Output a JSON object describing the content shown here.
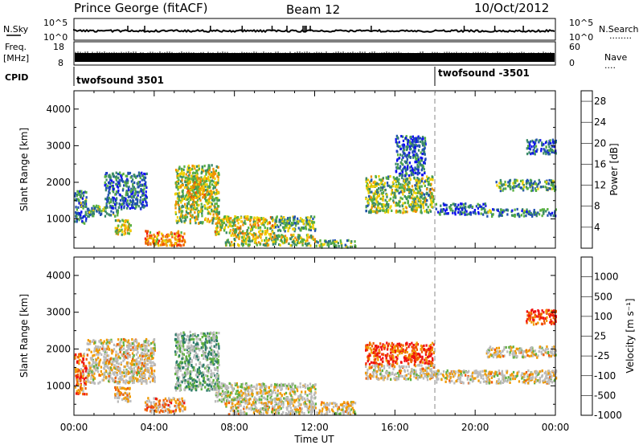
{
  "header": {
    "station": "Prince George (fitACF)",
    "beam": "Beam 12",
    "date": "10/Oct/2012"
  },
  "strips": {
    "nsky": {
      "label": "N.Sky",
      "left_ticks": [
        "10^5",
        "10^0"
      ],
      "right_ticks": [
        "10^5",
        "10^0"
      ],
      "right_label": "N.Search",
      "right_dots": "........"
    },
    "freq": {
      "label_top": "Freq.",
      "label_bottom": "[MHz]",
      "left_ticks": [
        "18",
        "8"
      ],
      "right_ticks": [
        "60",
        "0"
      ],
      "right_label": "Nave",
      "right_dots": "...."
    },
    "cpid": {
      "label": "CPID",
      "modes": [
        {
          "name": "twofsound 3501",
          "start_hour": 0
        },
        {
          "name": "twofsound -3501",
          "start_hour": 18
        }
      ]
    }
  },
  "colors": {
    "power": [
      "#1010f0",
      "#2050b0",
      "#3a8a68",
      "#58b040",
      "#f0d000",
      "#f09000",
      "#f05000",
      "#f01010"
    ],
    "velocity": [
      "#f01010",
      "#f05a00",
      "#f09a00",
      "#bbbbbb",
      "#bbbbbb",
      "#60b040",
      "#2a7a68",
      "#2040c0"
    ]
  },
  "chart_data": [
    {
      "type": "heatmap",
      "panel": "power",
      "xlabel": "",
      "ylabel": "Slant Range [km]",
      "ylim": [
        200,
        4500
      ],
      "xlim_hours": [
        0,
        24
      ],
      "yticks": [
        "1000",
        "2000",
        "3000",
        "4000"
      ],
      "colorbar": {
        "label": "Power [dB]",
        "ticks": [
          "4",
          "8",
          "12",
          "16",
          "20",
          "24",
          "28"
        ],
        "range": [
          0,
          30
        ]
      },
      "regions": [
        {
          "t0": 0.0,
          "t1": 0.6,
          "r0": 900,
          "r1": 1800,
          "level": 0.3
        },
        {
          "t0": 0.6,
          "t1": 2.2,
          "r0": 1100,
          "r1": 1400,
          "level": 0.35
        },
        {
          "t0": 1.5,
          "t1": 3.6,
          "r0": 1300,
          "r1": 2300,
          "level": 0.25
        },
        {
          "t0": 2.0,
          "t1": 2.8,
          "r0": 600,
          "r1": 1000,
          "level": 0.55
        },
        {
          "t0": 3.5,
          "t1": 5.5,
          "r0": 300,
          "r1": 700,
          "level": 0.7
        },
        {
          "t0": 5.0,
          "t1": 7.2,
          "r0": 900,
          "r1": 2500,
          "level": 0.5
        },
        {
          "t0": 5.6,
          "t1": 6.6,
          "r0": 1600,
          "r1": 2200,
          "level": 0.6
        },
        {
          "t0": 7.0,
          "t1": 10.0,
          "r0": 600,
          "r1": 1100,
          "level": 0.55
        },
        {
          "t0": 7.5,
          "t1": 12.0,
          "r0": 300,
          "r1": 600,
          "level": 0.5
        },
        {
          "t0": 10.0,
          "t1": 12.0,
          "r0": 700,
          "r1": 1100,
          "level": 0.4
        },
        {
          "t0": 12.0,
          "t1": 14.0,
          "r0": 250,
          "r1": 450,
          "level": 0.35
        },
        {
          "t0": 14.5,
          "t1": 17.9,
          "r0": 1200,
          "r1": 2200,
          "level": 0.45
        },
        {
          "t0": 16.0,
          "t1": 17.5,
          "r0": 2200,
          "r1": 3300,
          "level": 0.2
        },
        {
          "t0": 18.0,
          "t1": 20.5,
          "r0": 1150,
          "r1": 1450,
          "level": 0.2
        },
        {
          "t0": 20.5,
          "t1": 24.0,
          "r0": 1100,
          "r1": 1300,
          "level": 0.3
        },
        {
          "t0": 21.0,
          "t1": 24.0,
          "r0": 1800,
          "r1": 2100,
          "level": 0.35
        },
        {
          "t0": 22.5,
          "t1": 24.0,
          "r0": 2800,
          "r1": 3200,
          "level": 0.2
        }
      ]
    },
    {
      "type": "heatmap",
      "panel": "velocity",
      "xlabel": "Time UT",
      "ylabel": "Slant Range [km]",
      "ylim": [
        200,
        4500
      ],
      "xlim_hours": [
        0,
        24
      ],
      "xticks": [
        "00:00",
        "04:00",
        "08:00",
        "12:00",
        "16:00",
        "20:00",
        "00:00"
      ],
      "yticks": [
        "1000",
        "2000",
        "3000",
        "4000"
      ],
      "colorbar": {
        "label": "Velocity [m s⁻¹]",
        "ticks": [
          "1000",
          "500",
          "100",
          "25",
          "-25",
          "-100",
          "-500",
          "-1000"
        ]
      },
      "regions": [
        {
          "t0": 0.0,
          "t1": 0.6,
          "r0": 800,
          "r1": 1900,
          "level": 0.2
        },
        {
          "t0": 0.6,
          "t1": 4.0,
          "r0": 1100,
          "r1": 2300,
          "level": 0.45
        },
        {
          "t0": 2.0,
          "t1": 2.8,
          "r0": 600,
          "r1": 1000,
          "level": 0.35
        },
        {
          "t0": 3.5,
          "t1": 5.5,
          "r0": 300,
          "r1": 700,
          "level": 0.3
        },
        {
          "t0": 5.0,
          "t1": 7.2,
          "r0": 900,
          "r1": 2500,
          "level": 0.65
        },
        {
          "t0": 7.0,
          "t1": 12.0,
          "r0": 600,
          "r1": 1100,
          "level": 0.5
        },
        {
          "t0": 7.5,
          "t1": 14.0,
          "r0": 250,
          "r1": 600,
          "level": 0.45
        },
        {
          "t0": 14.5,
          "t1": 17.9,
          "r0": 1600,
          "r1": 2200,
          "level": 0.15
        },
        {
          "t0": 14.5,
          "t1": 17.9,
          "r0": 1200,
          "r1": 1600,
          "level": 0.45
        },
        {
          "t0": 18.0,
          "t1": 24.0,
          "r0": 1100,
          "r1": 1450,
          "level": 0.45
        },
        {
          "t0": 20.5,
          "t1": 24.0,
          "r0": 1800,
          "r1": 2100,
          "level": 0.45
        },
        {
          "t0": 22.5,
          "t1": 24.0,
          "r0": 2700,
          "r1": 3100,
          "level": 0.15
        }
      ]
    }
  ]
}
